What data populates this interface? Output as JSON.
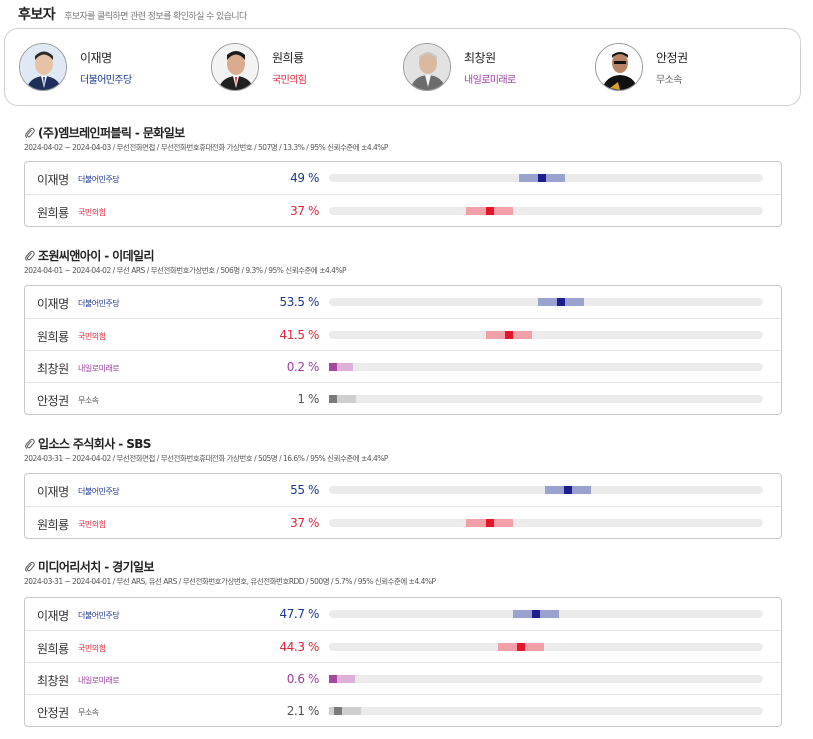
{
  "header": {
    "title": "후보자",
    "note": "후보자를 클릭하면 관련 정보를 확인하실 수 있습니다"
  },
  "candidates": [
    {
      "name": "이재명",
      "party": "더불어민주당",
      "party_color": "#1c3790",
      "avatar_icon": "person-icon"
    },
    {
      "name": "원희룡",
      "party": "국민의힘",
      "party_color": "#e5223a",
      "avatar_icon": "person-icon"
    },
    {
      "name": "최창원",
      "party": "내일로미래로",
      "party_color": "#9b3fa0",
      "avatar_icon": "person-icon"
    },
    {
      "name": "안정권",
      "party": "무소속",
      "party_color": "#666666",
      "avatar_icon": "person-icon"
    }
  ],
  "parties": {
    "더불어민주당": {
      "main": "#1c1f8c",
      "range": "#9aa3cf",
      "text": "#1c3790"
    },
    "국민의힘": {
      "main": "#e3152a",
      "range": "#f1a0a8",
      "text": "#e5223a"
    },
    "내일로미래로": {
      "main": "#a8479c",
      "range": "#dcb1d7",
      "text": "#9b3fa0"
    },
    "무소속": {
      "main": "#7a7a7a",
      "range": "#cfcfcf",
      "text": "#555555"
    }
  },
  "polls": [
    {
      "title": "(주)엠브레인퍼블릭 - 문화일보",
      "meta": "2024-04-02 ~ 2024-04-03 / 무선전화면접 / 무선전화번호휴대전화 가상번호 / 507명 / 13.3% / 95% 신뢰수준에 ±4.4%P",
      "margin": 4.4,
      "rows": [
        {
          "name": "이재명",
          "party": "더불어민주당",
          "pct_label": "49 %",
          "value": 49
        },
        {
          "name": "원희룡",
          "party": "국민의힘",
          "pct_label": "37 %",
          "value": 37
        }
      ]
    },
    {
      "title": "조원씨앤아이 - 이데일리",
      "meta": "2024-04-01 ~ 2024-04-02 / 무선 ARS / 무선전화번호가상번호 / 506명 / 9.3% / 95% 신뢰수준에 ±4.4%P",
      "margin": 4.4,
      "rows": [
        {
          "name": "이재명",
          "party": "더불어민주당",
          "pct_label": "53.5 %",
          "value": 53.5
        },
        {
          "name": "원희룡",
          "party": "국민의힘",
          "pct_label": "41.5 %",
          "value": 41.5
        },
        {
          "name": "최창원",
          "party": "내일로미래로",
          "pct_label": "0.2 %",
          "value": 0.2
        },
        {
          "name": "안정권",
          "party": "무소속",
          "pct_label": "1 %",
          "value": 1
        }
      ]
    },
    {
      "title": "입소스 주식회사 - SBS",
      "meta": "2024-03-31 ~ 2024-04-02 / 무선전화면접 / 무선전화번호휴대전화 가상번호 / 505명 / 16.6% / 95% 신뢰수준에 ±4.4%P",
      "margin": 4.4,
      "rows": [
        {
          "name": "이재명",
          "party": "더불어민주당",
          "pct_label": "55 %",
          "value": 55
        },
        {
          "name": "원희룡",
          "party": "국민의힘",
          "pct_label": "37 %",
          "value": 37
        }
      ]
    },
    {
      "title": "미디어리서치 - 경기일보",
      "meta": "2024-03-31 ~ 2024-04-01 / 무선 ARS, 유선 ARS / 무선전화번호가상번호, 유선전화번호RDD / 500명 / 5.7% / 95% 신뢰수준에 ±4.4%P",
      "margin": 4.4,
      "rows": [
        {
          "name": "이재명",
          "party": "더불어민주당",
          "pct_label": "47.7 %",
          "value": 47.7
        },
        {
          "name": "원희룡",
          "party": "국민의힘",
          "pct_label": "44.3 %",
          "value": 44.3
        },
        {
          "name": "최창원",
          "party": "내일로미래로",
          "pct_label": "0.6 %",
          "value": 0.6
        },
        {
          "name": "안정권",
          "party": "무소속",
          "pct_label": "2.1 %",
          "value": 2.1
        }
      ]
    }
  ]
}
